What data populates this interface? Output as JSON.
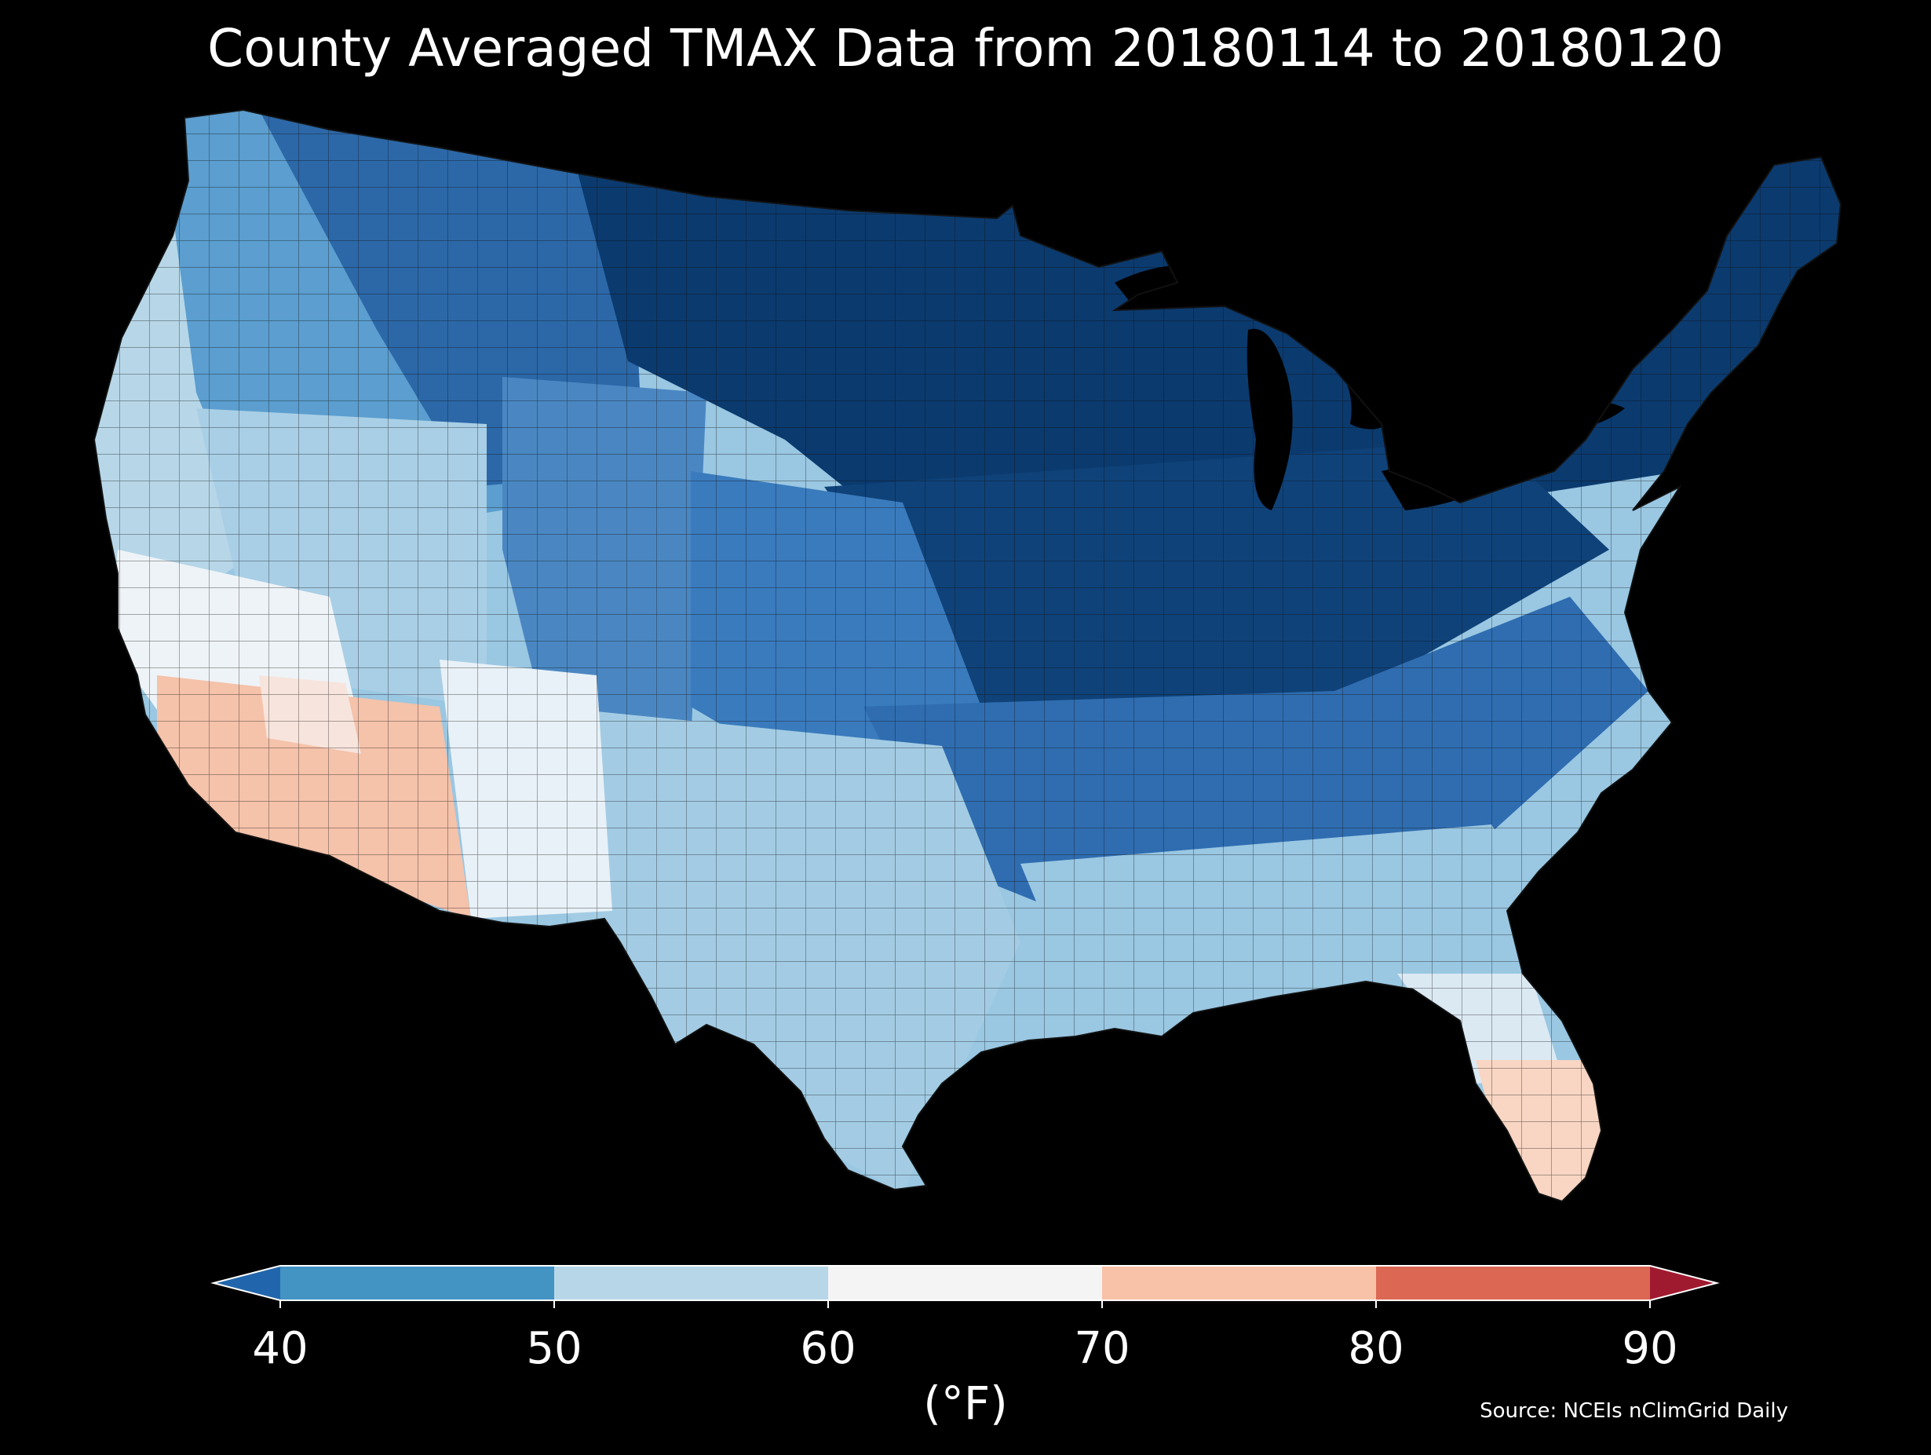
{
  "title": "County Averaged TMAX Data from 20180114 to 20180120",
  "source": "Source: NCEIs nClimGrid Daily",
  "colorbar": {
    "unit_label": "(°F)",
    "ticks": [
      "40",
      "50",
      "60",
      "70",
      "80",
      "90"
    ],
    "bins": [
      {
        "range": "<40",
        "color": "#2166ac"
      },
      {
        "range": "40-50",
        "color": "#4393c3"
      },
      {
        "range": "50-60",
        "color": "#b7d7e8"
      },
      {
        "range": "60-70",
        "color": "#f4f4f4"
      },
      {
        "range": "70-80",
        "color": "#f7c2a8"
      },
      {
        "range": "80-90",
        "color": "#dc6854"
      },
      {
        "range": ">90",
        "color": "#a01a2f"
      }
    ],
    "extend": "both"
  },
  "map": {
    "region": "Contiguous United States, county level",
    "background": "#000000",
    "county_border_color": "#1a1a1a",
    "regional_fill": [
      {
        "region": "Northern Plains / Upper Midwest / Northeast",
        "color": "#0b3a6e"
      },
      {
        "region": "Northern Rockies / Montana / Idaho",
        "color": "#2c68a8"
      },
      {
        "region": "Pacific Northwest coast",
        "color": "#8cbede"
      },
      {
        "region": "Central Plains / Ohio Valley",
        "color": "#2f6db0"
      },
      {
        "region": "Southern Plains / Texas / Southeast",
        "color": "#9ac7e2"
      },
      {
        "region": "Gulf Coast / Florida north",
        "color": "#dbe9f3"
      },
      {
        "region": "Southern California / Arizona desert",
        "color": "#f5c2aa"
      },
      {
        "region": "South Florida",
        "color": "#f8d6c3"
      }
    ]
  }
}
